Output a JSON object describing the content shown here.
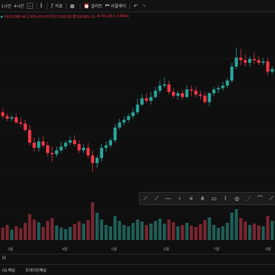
{
  "toolbar": {
    "interval_1h": "1시간",
    "interval_4h": "4시간",
    "chart_type_icon": "candles-icon",
    "indicators_label": "지표",
    "layout_icon": "layout-icon",
    "alert_label": "알러트",
    "replay_label": "리플레이",
    "undo_icon": "undo-icon",
    "redo_icon": "redo-icon"
  },
  "ohlc": {
    "open": "시123,886.44",
    "high": "고124,474.00",
    "low": "저117,632.00",
    "close": "종118,585.13",
    "change": "−4,721.30 (−3.83%)"
  },
  "x_axis": [
    "3월",
    "4월",
    "5월",
    "6월",
    "7월",
    "8월"
  ],
  "drawing_tools": [
    "trend-line-icon",
    "ray-icon",
    "horizontal-line-icon",
    "vertical-line-icon",
    "fib-icon",
    "pitchfork-icon",
    "rectangle-icon",
    "brush-icon",
    "ellipse-icon",
    "path-icon",
    "arc-icon",
    "more-icon"
  ],
  "bottom": {
    "panel_left": "(S) 패널",
    "trading_panel": "트레이딩패널"
  },
  "colors": {
    "up": "#26a69a",
    "down": "#f23645",
    "background": "#0f0f0f"
  },
  "chart_data": {
    "type": "candlestick",
    "x": [
      "2025-02-05",
      "2025-02-08",
      "2025-02-11",
      "2025-02-14",
      "2025-02-17",
      "2025-02-20",
      "2025-02-23",
      "2025-02-26",
      "2025-03-01",
      "2025-03-04",
      "2025-03-07",
      "2025-03-10",
      "2025-03-13",
      "2025-03-16",
      "2025-03-19",
      "2025-03-22",
      "2025-03-25",
      "2025-03-28",
      "2025-03-31",
      "2025-04-03",
      "2025-04-06",
      "2025-04-09",
      "2025-04-12",
      "2025-04-15",
      "2025-04-18",
      "2025-04-21",
      "2025-04-24",
      "2025-04-27",
      "2025-04-30",
      "2025-05-03",
      "2025-05-06",
      "2025-05-09",
      "2025-05-12",
      "2025-05-15",
      "2025-05-18",
      "2025-05-21",
      "2025-05-24",
      "2025-05-27",
      "2025-05-30",
      "2025-06-02",
      "2025-06-05",
      "2025-06-08",
      "2025-06-11",
      "2025-06-14",
      "2025-06-17",
      "2025-06-20",
      "2025-06-23",
      "2025-06-26",
      "2025-06-29",
      "2025-07-02",
      "2025-07-05",
      "2025-07-08",
      "2025-07-11",
      "2025-07-14",
      "2025-07-17",
      "2025-07-20",
      "2025-07-23",
      "2025-07-26",
      "2025-07-29",
      "2025-08-01",
      "2025-08-04"
    ],
    "open": [
      98000,
      96500,
      95500,
      96000,
      94000,
      93500,
      91000,
      86000,
      84000,
      86500,
      85000,
      82000,
      81500,
      83000,
      84500,
      86000,
      87000,
      85500,
      83000,
      84000,
      81000,
      78000,
      80000,
      84000,
      85000,
      87000,
      92000,
      94000,
      95000,
      96500,
      98000,
      101000,
      103500,
      102500,
      104000,
      106500,
      108500,
      109000,
      106000,
      104500,
      105500,
      104000,
      107000,
      106500,
      105000,
      104500,
      102000,
      105500,
      107000,
      107500,
      108500,
      110500,
      116000,
      119500,
      118500,
      117500,
      119000,
      118500,
      117500,
      118000,
      114000
    ],
    "high": [
      99500,
      97500,
      97000,
      97500,
      96000,
      95000,
      93000,
      88000,
      88000,
      88500,
      86500,
      84500,
      84500,
      86500,
      87000,
      88500,
      89000,
      87000,
      85500,
      86000,
      83000,
      81000,
      85500,
      86500,
      88000,
      93500,
      95500,
      96500,
      97500,
      99500,
      103500,
      105000,
      105500,
      106000,
      108000,
      110500,
      111500,
      110500,
      107500,
      106500,
      107000,
      108500,
      108500,
      108000,
      106500,
      106000,
      106000,
      108000,
      108500,
      110000,
      111500,
      117500,
      123500,
      123000,
      121000,
      120000,
      121500,
      120000,
      119500,
      119500,
      116000
    ],
    "low": [
      95500,
      94500,
      94500,
      93500,
      92500,
      90500,
      85000,
      82500,
      82500,
      84000,
      80500,
      78500,
      80500,
      82000,
      83500,
      85000,
      84500,
      82000,
      82000,
      80000,
      74500,
      76000,
      78500,
      82500,
      84000,
      86000,
      91000,
      93000,
      94000,
      95500,
      97000,
      100500,
      101500,
      101000,
      103500,
      105500,
      107500,
      105000,
      103500,
      103000,
      103000,
      103500,
      104500,
      104000,
      103000,
      101000,
      100500,
      104500,
      105500,
      106500,
      107500,
      109500,
      115000,
      116500,
      116000,
      116000,
      117000,
      116500,
      116500,
      112500,
      113000
    ],
    "close": [
      96500,
      95500,
      96000,
      94000,
      93500,
      91000,
      86000,
      84000,
      86500,
      85000,
      82000,
      81500,
      83000,
      84500,
      86000,
      87000,
      85500,
      83000,
      84000,
      81000,
      78000,
      80000,
      84000,
      85000,
      87000,
      92000,
      94000,
      95000,
      96500,
      98000,
      101000,
      103500,
      102500,
      104000,
      106500,
      108500,
      109000,
      106000,
      104500,
      105500,
      104000,
      107000,
      106500,
      105000,
      104500,
      102000,
      105500,
      107000,
      107500,
      108500,
      110500,
      116000,
      119500,
      118500,
      117500,
      119000,
      118500,
      117500,
      118000,
      114000,
      115000
    ],
    "volume": [
      18,
      22,
      15,
      20,
      17,
      25,
      38,
      30,
      26,
      19,
      28,
      32,
      21,
      18,
      16,
      19,
      23,
      27,
      24,
      29,
      55,
      40,
      30,
      22,
      20,
      35,
      28,
      22,
      20,
      25,
      30,
      27,
      22,
      24,
      28,
      31,
      24,
      30,
      26,
      20,
      22,
      25,
      21,
      19,
      23,
      29,
      33,
      22,
      18,
      20,
      25,
      40,
      45,
      32,
      27,
      22,
      24,
      21,
      20,
      35,
      28
    ],
    "price_range": [
      72000,
      126000
    ]
  }
}
